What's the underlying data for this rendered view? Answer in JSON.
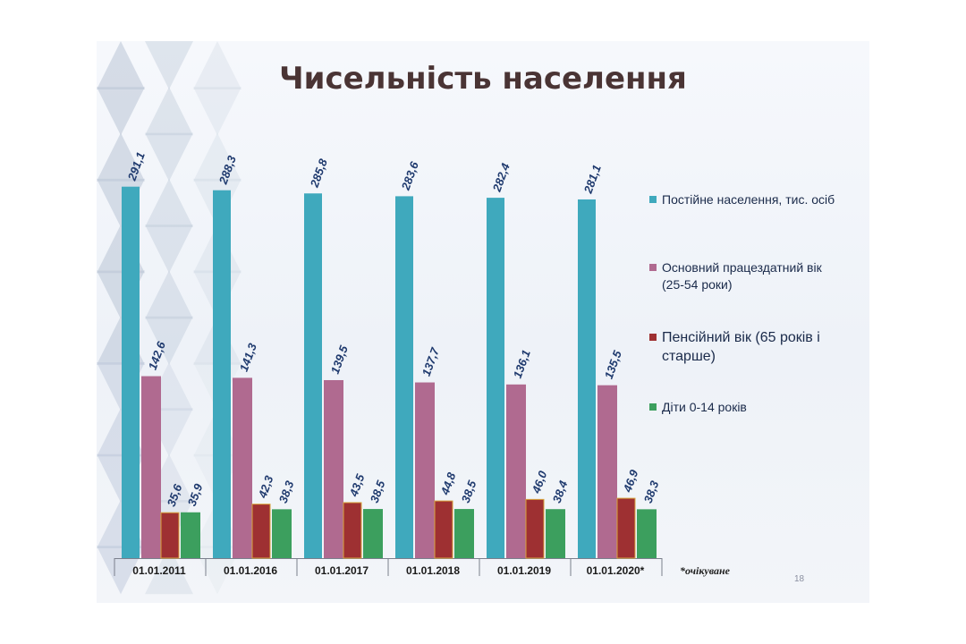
{
  "slide": {
    "title": "Чисельність населення",
    "page_number": "18",
    "footnote": "*очікуване"
  },
  "chart_data": {
    "type": "bar",
    "categories": [
      "01.01.2011",
      "01.01.2016",
      "01.01.2017",
      "01.01.2018",
      "01.01.2019",
      "01.01.2020*"
    ],
    "series": [
      {
        "name": "Постійне населення, тис. осіб",
        "values": [
          291.1,
          288.3,
          285.8,
          283.6,
          282.4,
          281.1
        ],
        "labels": [
          "291,1",
          "288,3",
          "285,8",
          "283,6",
          "282,4",
          "281,1"
        ],
        "color": "#3fa9bd"
      },
      {
        "name": "Основний працездатний вік (25-54 роки)",
        "values": [
          142.6,
          141.3,
          139.5,
          137.7,
          136.1,
          135.5
        ],
        "labels": [
          "142,6",
          "141,3",
          "139,5",
          "137,7",
          "136,1",
          "135,5"
        ],
        "color": "#b06a90"
      },
      {
        "name": "Пенсійний  вік (65 років і старше)",
        "values": [
          35.6,
          42.3,
          43.5,
          44.8,
          46.0,
          46.9
        ],
        "labels": [
          "35,6",
          "42,3",
          "43,5",
          "44,8",
          "46,0",
          "46,9"
        ],
        "color": "#9e3032"
      },
      {
        "name": "Діти 0-14 років",
        "values": [
          35.9,
          38.3,
          38.5,
          38.5,
          38.4,
          38.3
        ],
        "labels": [
          "35,9",
          "38,3",
          "38,5",
          "38,5",
          "38,4",
          "38,3"
        ],
        "color": "#3c9f5e"
      }
    ],
    "legend_lines": [
      [
        "Постійне населення, тис. осіб"
      ],
      [
        "Основний працездатний вік",
        "(25-54 роки)"
      ],
      [
        "Пенсійний  вік (65 років і",
        "старше)"
      ],
      [
        "Діти 0-14 років"
      ]
    ],
    "ylim": [
      0,
      300
    ],
    "grid": false,
    "legend_position": "right",
    "colors": {
      "title": "#4a3434",
      "data_label": "#1f3a6e",
      "axis_line": "#7a7f8c",
      "category_label": "#1a1a1a"
    }
  }
}
